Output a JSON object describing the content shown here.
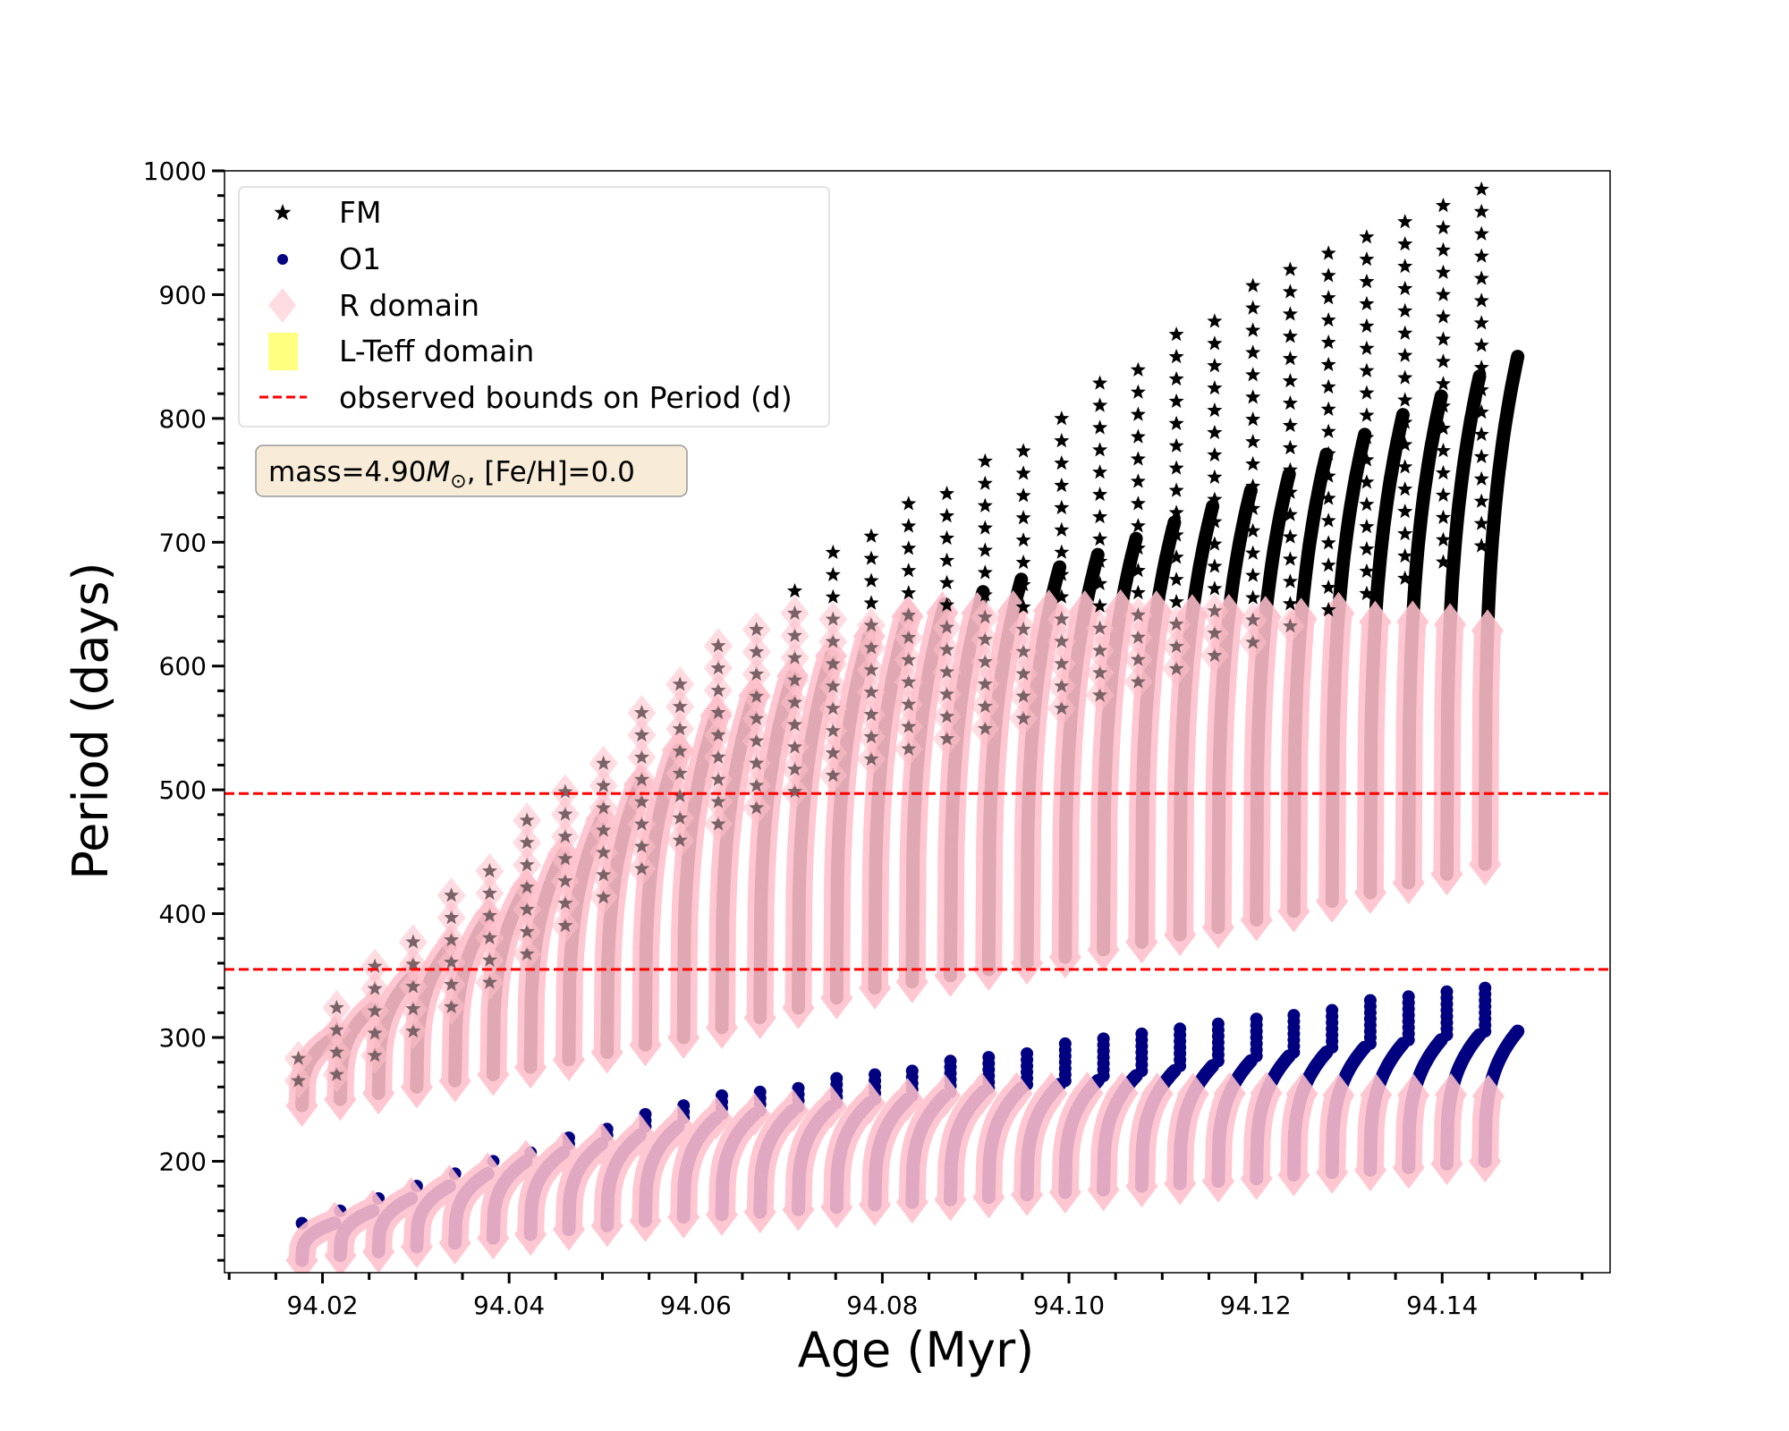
{
  "chart_data": {
    "type": "scatter",
    "title": "",
    "xlabel": "Age (Myr)",
    "ylabel": "Period (days)",
    "xlim": [
      94.0095,
      94.158
    ],
    "ylim": [
      110,
      1000
    ],
    "xticks": [
      94.02,
      94.04,
      94.06,
      94.08,
      94.1,
      94.12,
      94.14
    ],
    "xtick_labels": [
      "94.02",
      "94.04",
      "94.06",
      "94.08",
      "94.10",
      "94.12",
      "94.14"
    ],
    "yticks": [
      200,
      300,
      400,
      500,
      600,
      700,
      800,
      900,
      1000
    ],
    "ytick_labels": [
      "200",
      "300",
      "400",
      "500",
      "600",
      "700",
      "800",
      "900",
      "1000"
    ],
    "grid": false,
    "legend_position": "top-left",
    "legend": [
      {
        "label": "FM",
        "marker": "star",
        "color": "#000000"
      },
      {
        "label": "O1",
        "marker": "circle",
        "color": "#000080"
      },
      {
        "label": "R domain",
        "marker": "diamond",
        "color": "#ffc0cb"
      },
      {
        "label": "L-Teff domain",
        "marker": "square",
        "color": "#ffff80"
      },
      {
        "label": "observed bounds on Period (d)",
        "marker": "dashed-line",
        "color": "#ff0000"
      }
    ],
    "annotation": {
      "prefix": "mass=4.90",
      "symbol": "M",
      "subscript": "⊙",
      "suffix": ", [Fe/H]=0.0"
    },
    "observed_period_bounds": [
      355,
      497
    ],
    "r_domain_period_caps": {
      "FM": 645,
      "O1": 255
    },
    "cycle_duration": 0.0035,
    "cycles": {
      "age_start": [
        94.0178,
        94.0219,
        94.026,
        94.0301,
        94.0342,
        94.0383,
        94.0423,
        94.0464,
        94.0505,
        94.0546,
        94.0587,
        94.0628,
        94.0669,
        94.071,
        94.0751,
        94.0792,
        94.0832,
        94.0873,
        94.0914,
        94.0955,
        94.0996,
        94.1037,
        94.1078,
        94.1119,
        94.116,
        94.1201,
        94.1241,
        94.1282,
        94.1323,
        94.1364,
        94.1405,
        94.1446
      ],
      "fm_min": [
        245,
        250,
        255,
        260,
        265,
        270,
        276,
        282,
        288,
        294,
        300,
        308,
        316,
        324,
        332,
        340,
        345,
        350,
        355,
        360,
        365,
        371,
        377,
        383,
        389,
        395,
        402,
        410,
        417,
        425,
        432,
        440
      ],
      "fm_max": [
        300,
        324,
        348,
        372,
        396,
        420,
        448,
        476,
        504,
        532,
        560,
        576,
        592,
        608,
        624,
        640,
        650,
        660,
        670,
        680,
        690,
        703,
        716,
        729,
        742,
        755,
        771,
        787,
        803,
        818,
        834,
        850
      ],
      "fm_spike": [
        300,
        329,
        358,
        387,
        416,
        445,
        476,
        507,
        538,
        569,
        600,
        623,
        646,
        669,
        692,
        715,
        734,
        753,
        772,
        791,
        810,
        831,
        852,
        873,
        894,
        915,
        929,
        943,
        958,
        972,
        986,
        1000
      ],
      "o1_min": [
        120,
        124,
        127,
        131,
        134,
        138,
        141,
        145,
        148,
        152,
        155,
        157,
        159,
        161,
        163,
        165,
        167,
        169,
        171,
        173,
        175,
        177,
        180,
        182,
        184,
        186,
        189,
        191,
        193,
        195,
        198,
        200
      ],
      "o1_max": [
        150,
        160,
        170,
        180,
        190,
        200,
        207,
        214,
        221,
        228,
        235,
        238,
        241,
        244,
        247,
        250,
        253,
        256,
        259,
        262,
        265,
        269,
        273,
        277,
        281,
        285,
        288,
        292,
        295,
        298,
        302,
        305
      ],
      "o1_spike": [
        150,
        160,
        170,
        180,
        190,
        200,
        210,
        219,
        229,
        238,
        248,
        253,
        258,
        263,
        268,
        273,
        277,
        282,
        286,
        291,
        295,
        300,
        304,
        309,
        313,
        318,
        322,
        326,
        330,
        334,
        338,
        342
      ]
    }
  }
}
